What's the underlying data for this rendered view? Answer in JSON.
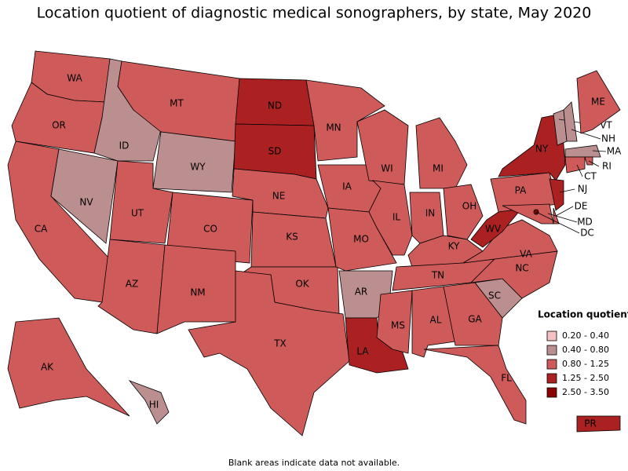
{
  "title": "Location quotient of diagnostic medical sonographers, by state, May 2020",
  "legend": {
    "title": "Location quotient",
    "position": "bottom-right",
    "items": [
      {
        "label": "0.20 - 0.40",
        "color": "#f5c2c2"
      },
      {
        "label": "0.40 - 0.80",
        "color": "#bb8f8f"
      },
      {
        "label": "0.80 - 1.25",
        "color": "#cf5a5a"
      },
      {
        "label": "1.25 - 2.50",
        "color": "#ab2121"
      },
      {
        "label": "2.50 - 3.50",
        "color": "#8b0000"
      }
    ]
  },
  "states": [
    {
      "label": "WA",
      "class": "0.80 - 1.25"
    },
    {
      "label": "OR",
      "class": "0.80 - 1.25"
    },
    {
      "label": "CA",
      "class": "0.80 - 1.25"
    },
    {
      "label": "NV",
      "class": "0.40 - 0.80"
    },
    {
      "label": "ID",
      "class": "0.40 - 0.80"
    },
    {
      "label": "MT",
      "class": "0.80 - 1.25"
    },
    {
      "label": "WY",
      "class": "0.40 - 0.80"
    },
    {
      "label": "UT",
      "class": "0.80 - 1.25"
    },
    {
      "label": "CO",
      "class": "0.80 - 1.25"
    },
    {
      "label": "AZ",
      "class": "0.80 - 1.25"
    },
    {
      "label": "NM",
      "class": "0.80 - 1.25"
    },
    {
      "label": "ND",
      "class": "1.25 - 2.50"
    },
    {
      "label": "SD",
      "class": "1.25 - 2.50"
    },
    {
      "label": "NE",
      "class": "0.80 - 1.25"
    },
    {
      "label": "KS",
      "class": "0.80 - 1.25"
    },
    {
      "label": "OK",
      "class": "0.80 - 1.25"
    },
    {
      "label": "TX",
      "class": "0.80 - 1.25"
    },
    {
      "label": "MN",
      "class": "0.80 - 1.25"
    },
    {
      "label": "IA",
      "class": "0.80 - 1.25"
    },
    {
      "label": "MO",
      "class": "0.80 - 1.25"
    },
    {
      "label": "AR",
      "class": "0.40 - 0.80"
    },
    {
      "label": "LA",
      "class": "1.25 - 2.50"
    },
    {
      "label": "WI",
      "class": "0.80 - 1.25"
    },
    {
      "label": "IL",
      "class": "0.80 - 1.25"
    },
    {
      "label": "MI",
      "class": "0.80 - 1.25"
    },
    {
      "label": "IN",
      "class": "0.80 - 1.25"
    },
    {
      "label": "OH",
      "class": "0.80 - 1.25"
    },
    {
      "label": "KY",
      "class": "0.80 - 1.25"
    },
    {
      "label": "TN",
      "class": "0.80 - 1.25"
    },
    {
      "label": "MS",
      "class": "0.80 - 1.25"
    },
    {
      "label": "AL",
      "class": "0.80 - 1.25"
    },
    {
      "label": "GA",
      "class": "0.80 - 1.25"
    },
    {
      "label": "FL",
      "class": "0.80 - 1.25"
    },
    {
      "label": "SC",
      "class": "0.40 - 0.80"
    },
    {
      "label": "NC",
      "class": "0.80 - 1.25"
    },
    {
      "label": "VA",
      "class": "0.80 - 1.25"
    },
    {
      "label": "WV",
      "class": "1.25 - 2.50"
    },
    {
      "label": "PA",
      "class": "0.80 - 1.25"
    },
    {
      "label": "NY",
      "class": "1.25 - 2.50"
    },
    {
      "label": "NJ",
      "class": "1.25 - 2.50"
    },
    {
      "label": "DE",
      "class": "0.80 - 1.25"
    },
    {
      "label": "MD",
      "class": "0.80 - 1.25"
    },
    {
      "label": "DC",
      "class": "2.50 - 3.50"
    },
    {
      "label": "VT",
      "class": "0.40 - 0.80"
    },
    {
      "label": "NH",
      "class": "0.40 - 0.80"
    },
    {
      "label": "MA",
      "class": "0.40 - 0.80"
    },
    {
      "label": "RI",
      "class": "0.80 - 1.25"
    },
    {
      "label": "CT",
      "class": "0.80 - 1.25"
    },
    {
      "label": "ME",
      "class": "0.80 - 1.25"
    },
    {
      "label": "AK",
      "class": "0.80 - 1.25"
    },
    {
      "label": "HI",
      "class": "0.40 - 0.80"
    },
    {
      "label": "PR",
      "class": "1.25 - 2.50"
    }
  ],
  "note": "Blank areas indicate data not available."
}
